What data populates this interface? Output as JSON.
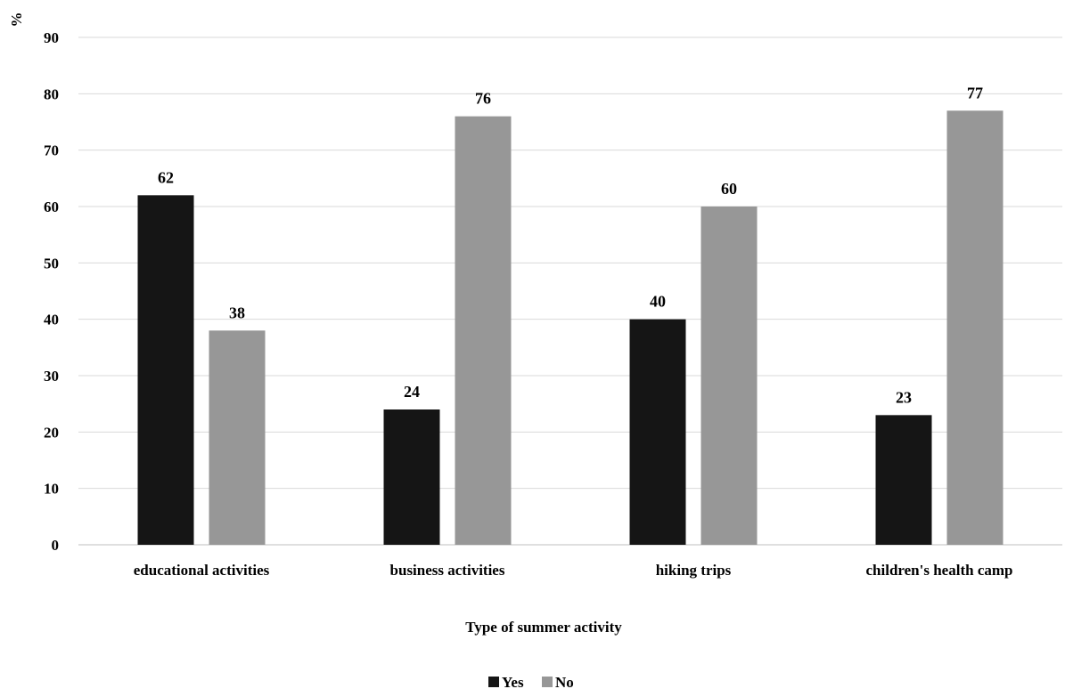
{
  "chart_data": {
    "type": "bar",
    "categories": [
      "educational activities",
      "business activities",
      "hiking trips",
      "children's health camp"
    ],
    "series": [
      {
        "name": "Yes",
        "values": [
          62,
          24,
          40,
          23
        ],
        "color": "#151515"
      },
      {
        "name": "No",
        "values": [
          38,
          76,
          60,
          77
        ],
        "color": "#979797"
      }
    ],
    "title": "",
    "xlabel": "Type of summer activity",
    "ylabel": "%",
    "ylim": [
      0,
      90
    ],
    "yticks": [
      0,
      10,
      20,
      30,
      40,
      50,
      60,
      70,
      80,
      90
    ],
    "grid": true,
    "legend": "bottom-center",
    "gridColor": "#d9d9d9"
  }
}
